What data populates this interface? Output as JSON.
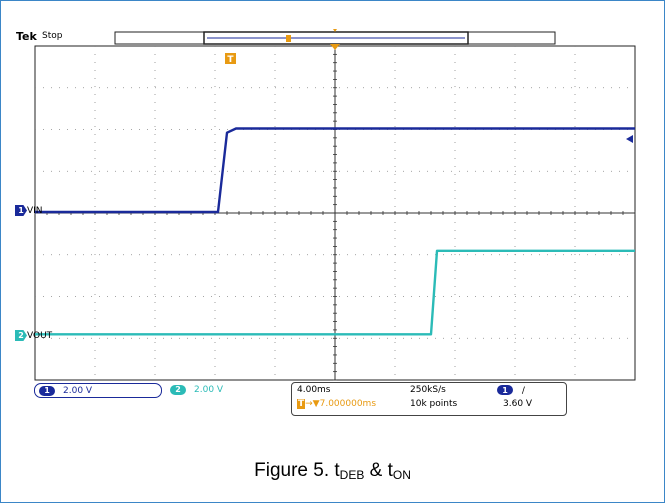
{
  "header": {
    "brand": "Tek",
    "state": "Stop"
  },
  "channels": [
    {
      "id": "1",
      "label": "VIN",
      "color": "#1a2a9a",
      "scale": "2.00 V"
    },
    {
      "id": "2",
      "label": "VOUT",
      "color": "#2bbbb7",
      "scale": "2.00 V"
    }
  ],
  "timebase": {
    "horizontal_scale": "4.00ms",
    "sample_rate": "250kS/s",
    "trigger_delay": "7.000000ms",
    "record_length": "10k points"
  },
  "trigger": {
    "source": "1",
    "slope": "rising",
    "level": "3.60 V",
    "marker": "T"
  },
  "caption": {
    "prefix": "Figure 5. t",
    "sub1": "DEB",
    "mid": " & t",
    "sub2": "ON"
  },
  "chart_data": {
    "type": "line",
    "x_unit": "divisions",
    "xlim": [
      0,
      10
    ],
    "grid_divisions": {
      "x": 10,
      "y": 8
    },
    "series": [
      {
        "name": "VIN",
        "points": [
          [
            0,
            0
          ],
          [
            3.05,
            0
          ],
          [
            3.2,
            1.9
          ],
          [
            3.35,
            2.0
          ],
          [
            10,
            2.0
          ]
        ]
      },
      {
        "name": "VOUT",
        "points": [
          [
            0,
            0
          ],
          [
            6.6,
            0
          ],
          [
            6.7,
            2.0
          ],
          [
            10,
            2.0
          ]
        ]
      }
    ]
  }
}
